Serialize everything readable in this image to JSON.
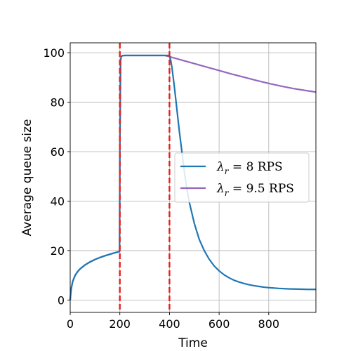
{
  "chart_data": {
    "type": "line",
    "title": "",
    "xlabel": "Time",
    "ylabel": "Average queue size",
    "xlim": [
      0,
      990
    ],
    "ylim": [
      -5,
      104
    ],
    "xticks": [
      0,
      200,
      400,
      600,
      800
    ],
    "xtick_labels": [
      "0",
      "200",
      "400",
      "600",
      "800"
    ],
    "yticks": [
      0,
      20,
      40,
      60,
      80,
      100
    ],
    "ytick_labels": [
      "0",
      "20",
      "40",
      "60",
      "80",
      "100"
    ],
    "grid": true,
    "legend_placement": "center-right",
    "vertical_lines": [
      {
        "x": 200,
        "color": "#e8201c",
        "style": "dashed"
      },
      {
        "x": 400,
        "color": "#e8201c",
        "style": "dashed"
      }
    ],
    "series": [
      {
        "name_symbol": "λ",
        "name_subscript": "r",
        "name_rest": " = 8 RPS",
        "color": "#1f77b4",
        "x": [
          0,
          2,
          5,
          10,
          20,
          30,
          40,
          60,
          80,
          100,
          120,
          140,
          160,
          180,
          199,
          200,
          203,
          206,
          210,
          220,
          260,
          300,
          340,
          380,
          400,
          405,
          410,
          420,
          430,
          440,
          450,
          460,
          470,
          480,
          500,
          520,
          540,
          560,
          580,
          600,
          620,
          640,
          660,
          680,
          700,
          720,
          740,
          760,
          780,
          800,
          840,
          880,
          920,
          960,
          990
        ],
        "y": [
          0,
          2.5,
          5,
          7.5,
          10,
          11.5,
          12.6,
          14.2,
          15.4,
          16.4,
          17.2,
          17.9,
          18.5,
          19.1,
          19.6,
          60,
          97,
          98.5,
          98.8,
          98.9,
          98.9,
          98.9,
          98.9,
          98.9,
          98.9,
          97,
          94,
          86,
          77,
          68,
          60,
          52,
          45,
          39.5,
          31,
          24.5,
          20,
          16.5,
          13.8,
          11.8,
          10.2,
          9,
          8,
          7.3,
          6.7,
          6.2,
          5.8,
          5.5,
          5.2,
          5,
          4.7,
          4.5,
          4.4,
          4.3,
          4.3
        ]
      },
      {
        "name_symbol": "λ",
        "name_subscript": "r",
        "name_rest": " = 9.5 RPS",
        "color": "#9467bd",
        "x": [
          0,
          2,
          5,
          10,
          20,
          30,
          40,
          60,
          80,
          100,
          120,
          140,
          160,
          180,
          199,
          200,
          203,
          206,
          210,
          220,
          260,
          300,
          340,
          380,
          400,
          450,
          500,
          550,
          600,
          650,
          700,
          750,
          800,
          850,
          900,
          950,
          990
        ],
        "y": [
          0,
          2.5,
          5,
          7.5,
          10,
          11.5,
          12.6,
          14.2,
          15.4,
          16.4,
          17.2,
          17.9,
          18.5,
          19.1,
          19.6,
          60,
          97,
          98.5,
          98.8,
          98.9,
          98.9,
          98.9,
          98.9,
          98.9,
          98.4,
          97,
          95.6,
          94.2,
          92.8,
          91.4,
          90.1,
          88.8,
          87.6,
          86.5,
          85.5,
          84.7,
          84.1
        ]
      }
    ]
  }
}
